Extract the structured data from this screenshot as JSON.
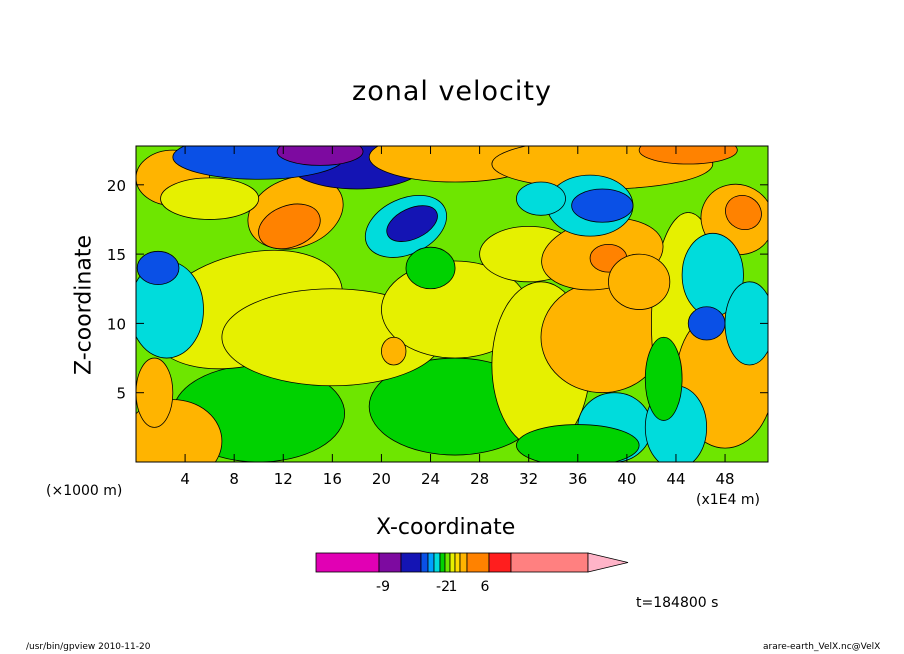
{
  "chart_data": {
    "type": "heatmap",
    "title": "zonal velocity",
    "xlabel": "X-coordinate",
    "ylabel": "Z-coordinate",
    "x_unit_left": "(×1000 m)",
    "x_unit_right": "(x1E4 m)",
    "xlim": [
      0,
      51.5
    ],
    "ylim": [
      0,
      22.8
    ],
    "x_ticks": [
      "4",
      "8",
      "12",
      "16",
      "20",
      "24",
      "28",
      "32",
      "36",
      "40",
      "44",
      "48"
    ],
    "y_ticks": [
      "5",
      "10",
      "15",
      "20"
    ],
    "time_label": "t=184800 s",
    "colorbar": {
      "tick_labels": [
        "-9",
        "-2",
        "1",
        "6"
      ],
      "colors": [
        "#e100b4",
        "#7d0aa0",
        "#1414b4",
        "#0a50e6",
        "#00a0ff",
        "#00dcdc",
        "#00d200",
        "#6ee600",
        "#e6f000",
        "#ffdc00",
        "#ffb400",
        "#ff8200",
        "#ff1e1e",
        "#ff8080",
        "#ffb4c8"
      ]
    },
    "colors_by_level": {
      "darkpurple": "#7d0aa0",
      "navy": "#1414b4",
      "blue": "#0a50e6",
      "cyan": "#00dcdc",
      "green": "#00d200",
      "yellow": "#e6f000",
      "orange": "#ffb400",
      "darkorange": "#ff8200",
      "background": "#6ee600"
    }
  },
  "footer": {
    "left": "/usr/bin/gpview   2010-11-20",
    "right": "arare-earth_VelX.nc@VelX"
  }
}
